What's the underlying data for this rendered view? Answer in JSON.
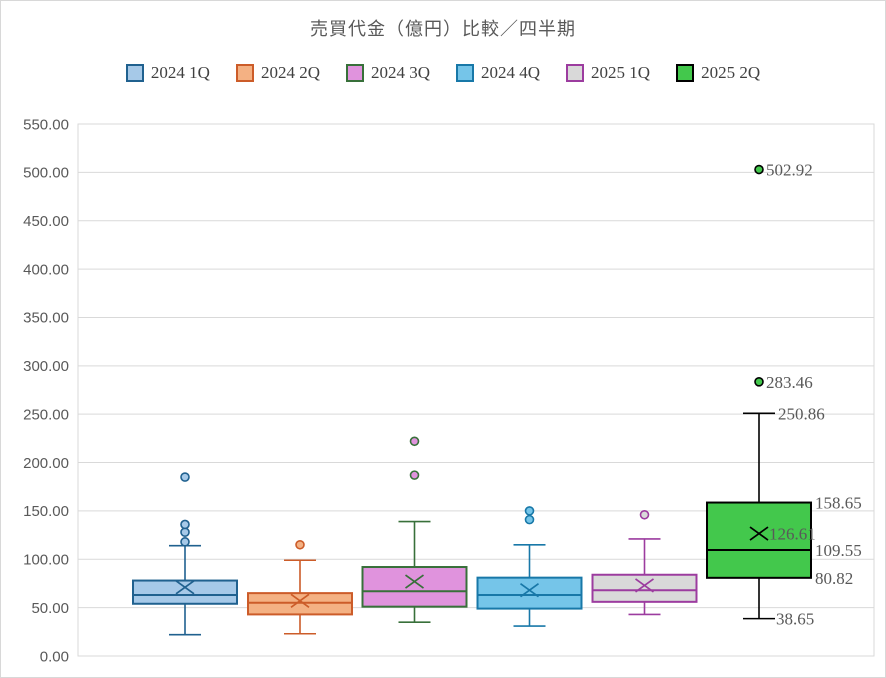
{
  "window": {
    "background": "#FFFFFF",
    "border_color": "#D8D8D8"
  },
  "chart_data": {
    "type": "boxplot",
    "title": "売買代金（億円）比較／四半期",
    "title_color": "#595959",
    "legend_position": "top",
    "grid": true,
    "gridline_color": "#D9D9D9",
    "plot_border_color": "#D9D9D9",
    "axis_text_color": "#595959",
    "data_label_color": "#595959",
    "ylim": [
      0,
      550
    ],
    "ytick_step": 50,
    "yticks": [
      "0.00",
      "50.00",
      "100.00",
      "150.00",
      "200.00",
      "250.00",
      "300.00",
      "350.00",
      "400.00",
      "450.00",
      "500.00",
      "550.00"
    ],
    "categories": [
      "2024 1Q",
      "2024 2Q",
      "2024 3Q",
      "2024 4Q",
      "2025 1Q",
      "2025 2Q"
    ],
    "series": [
      {
        "name": "2024 1Q",
        "fill": "#A6C9E8",
        "stroke": "#20618F",
        "min": 22,
        "q1": 54,
        "median": 63,
        "q3": 78,
        "max": 114,
        "mean": 71,
        "outliers": [
          118,
          128,
          136,
          185
        ],
        "labels_visible": false
      },
      {
        "name": "2024 2Q",
        "fill": "#F4B183",
        "stroke": "#CC5C29",
        "min": 23,
        "q1": 43,
        "median": 55,
        "q3": 65,
        "max": 99,
        "mean": 57,
        "outliers": [
          115
        ],
        "labels_visible": false
      },
      {
        "name": "2024 3Q",
        "fill": "#E093DD",
        "stroke": "#38703A",
        "min": 35,
        "q1": 51,
        "median": 67,
        "q3": 92,
        "max": 139,
        "mean": 77,
        "outliers": [
          187,
          222
        ],
        "labels_visible": false
      },
      {
        "name": "2024 4Q",
        "fill": "#75C5E9",
        "stroke": "#1878A8",
        "min": 31,
        "q1": 49,
        "median": 63,
        "q3": 81,
        "max": 115,
        "mean": 68,
        "outliers": [
          141,
          150
        ],
        "labels_visible": false
      },
      {
        "name": "2025 1Q",
        "fill": "#D9D9D9",
        "stroke": "#9C3C9F",
        "min": 43,
        "q1": 56,
        "median": 68,
        "q3": 84,
        "max": 121,
        "mean": 73,
        "outliers": [
          146
        ],
        "labels_visible": false
      },
      {
        "name": "2025 2Q",
        "fill": "#43C84C",
        "stroke": "#000000",
        "min": 38.65,
        "q1": 80.82,
        "median": 109.55,
        "q3": 158.65,
        "max": 250.86,
        "mean": 126.61,
        "outliers": [
          283.46,
          502.92
        ],
        "labels_visible": true,
        "labels": {
          "min": "38.65",
          "q1": "80.82",
          "median": "109.55",
          "q3": "158.65",
          "max": "250.86",
          "mean": "126.61",
          "outliers": [
            "283.46",
            "502.92"
          ]
        }
      }
    ]
  }
}
